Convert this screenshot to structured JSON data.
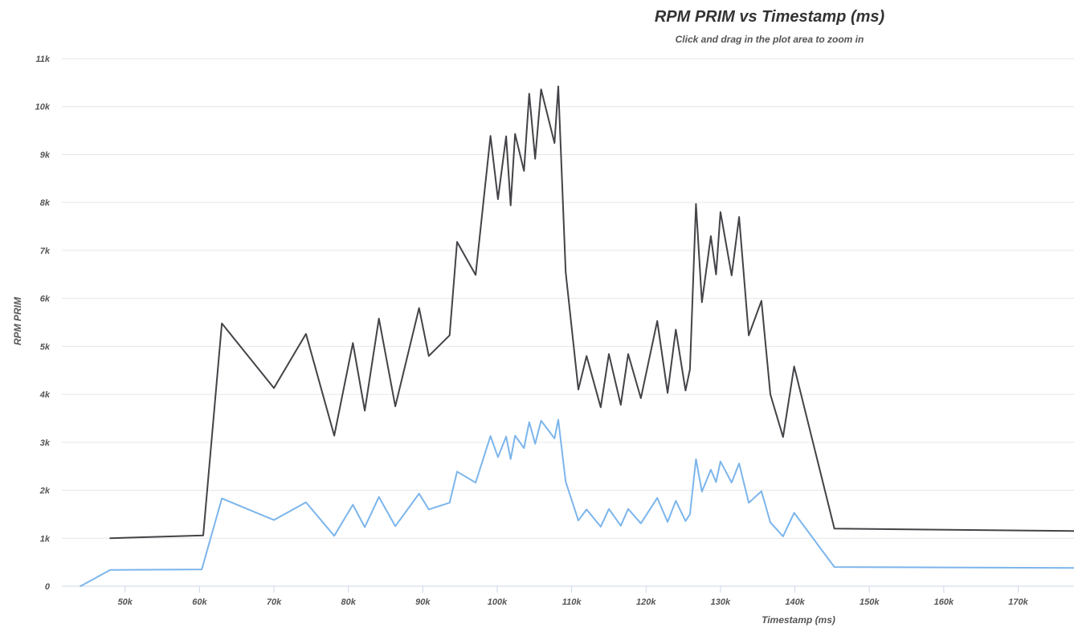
{
  "chart_data": {
    "type": "line",
    "title": "RPM PRIM vs Timestamp (ms)",
    "subtitle": "Click and drag in the plot area to zoom in",
    "xlabel": "Timestamp (ms)",
    "ylabel": "RPM PRIM",
    "xlim": [
      41500,
      177500
    ],
    "ylim": [
      0,
      11000
    ],
    "xticks": [
      50000,
      60000,
      70000,
      80000,
      90000,
      100000,
      110000,
      120000,
      130000,
      140000,
      150000,
      160000,
      170000
    ],
    "xtick_labels": [
      "50k",
      "60k",
      "70k",
      "80k",
      "90k",
      "100k",
      "110k",
      "120k",
      "130k",
      "140k",
      "150k",
      "160k",
      "170k"
    ],
    "yticks": [
      0,
      1000,
      2000,
      3000,
      4000,
      5000,
      6000,
      7000,
      8000,
      9000,
      10000,
      11000
    ],
    "ytick_labels": [
      "0",
      "1k",
      "2k",
      "3k",
      "4k",
      "5k",
      "6k",
      "7k",
      "8k",
      "9k",
      "10k",
      "11k"
    ],
    "grid": true,
    "legend": false,
    "series": [
      {
        "color": "#434348",
        "points": [
          [
            48000,
            1000
          ],
          [
            60500,
            1060
          ],
          [
            63000,
            5480
          ],
          [
            70000,
            4130
          ],
          [
            74300,
            5260
          ],
          [
            78100,
            3140
          ],
          [
            80600,
            5070
          ],
          [
            82200,
            3660
          ],
          [
            84100,
            5580
          ],
          [
            86300,
            3750
          ],
          [
            89500,
            5800
          ],
          [
            90800,
            4800
          ],
          [
            93600,
            5230
          ],
          [
            94600,
            7180
          ],
          [
            97100,
            6490
          ],
          [
            99100,
            9390
          ],
          [
            100100,
            8070
          ],
          [
            101200,
            9380
          ],
          [
            101800,
            7940
          ],
          [
            102400,
            9430
          ],
          [
            103600,
            8660
          ],
          [
            104300,
            10270
          ],
          [
            105100,
            8910
          ],
          [
            105900,
            10360
          ],
          [
            107700,
            9240
          ],
          [
            108200,
            10420
          ],
          [
            109200,
            6550
          ],
          [
            110900,
            4100
          ],
          [
            112000,
            4800
          ],
          [
            113900,
            3730
          ],
          [
            115000,
            4840
          ],
          [
            116600,
            3780
          ],
          [
            117600,
            4840
          ],
          [
            119300,
            3920
          ],
          [
            121500,
            5530
          ],
          [
            122900,
            4030
          ],
          [
            124000,
            5350
          ],
          [
            125300,
            4080
          ],
          [
            125900,
            4520
          ],
          [
            126700,
            7970
          ],
          [
            127500,
            5920
          ],
          [
            128700,
            7300
          ],
          [
            129400,
            6500
          ],
          [
            130000,
            7800
          ],
          [
            131500,
            6480
          ],
          [
            132500,
            7700
          ],
          [
            133800,
            5230
          ],
          [
            135500,
            5950
          ],
          [
            136700,
            4000
          ],
          [
            138400,
            3110
          ],
          [
            139900,
            4580
          ],
          [
            145300,
            1200
          ],
          [
            177500,
            1150
          ]
        ]
      },
      {
        "color": "#7cb5ec",
        "points": [
          [
            44000,
            0
          ],
          [
            48000,
            340
          ],
          [
            60300,
            350
          ],
          [
            63000,
            1830
          ],
          [
            70000,
            1380
          ],
          [
            74300,
            1750
          ],
          [
            78100,
            1050
          ],
          [
            80600,
            1700
          ],
          [
            82200,
            1230
          ],
          [
            84100,
            1860
          ],
          [
            86300,
            1250
          ],
          [
            89500,
            1930
          ],
          [
            90800,
            1600
          ],
          [
            93600,
            1740
          ],
          [
            94600,
            2390
          ],
          [
            97100,
            2160
          ],
          [
            99100,
            3130
          ],
          [
            100100,
            2690
          ],
          [
            101200,
            3120
          ],
          [
            101800,
            2650
          ],
          [
            102400,
            3140
          ],
          [
            103600,
            2880
          ],
          [
            104300,
            3420
          ],
          [
            105100,
            2970
          ],
          [
            105900,
            3450
          ],
          [
            107700,
            3080
          ],
          [
            108200,
            3470
          ],
          [
            109200,
            2180
          ],
          [
            110900,
            1370
          ],
          [
            112000,
            1600
          ],
          [
            113900,
            1240
          ],
          [
            115000,
            1610
          ],
          [
            116600,
            1260
          ],
          [
            117600,
            1610
          ],
          [
            119300,
            1310
          ],
          [
            121500,
            1840
          ],
          [
            122900,
            1340
          ],
          [
            124000,
            1780
          ],
          [
            125300,
            1360
          ],
          [
            125900,
            1500
          ],
          [
            126700,
            2650
          ],
          [
            127500,
            1970
          ],
          [
            128700,
            2430
          ],
          [
            129400,
            2170
          ],
          [
            130000,
            2600
          ],
          [
            131500,
            2160
          ],
          [
            132500,
            2560
          ],
          [
            133800,
            1740
          ],
          [
            135500,
            1980
          ],
          [
            136700,
            1330
          ],
          [
            138400,
            1040
          ],
          [
            139900,
            1530
          ],
          [
            145300,
            400
          ],
          [
            177500,
            380
          ]
        ]
      }
    ]
  }
}
